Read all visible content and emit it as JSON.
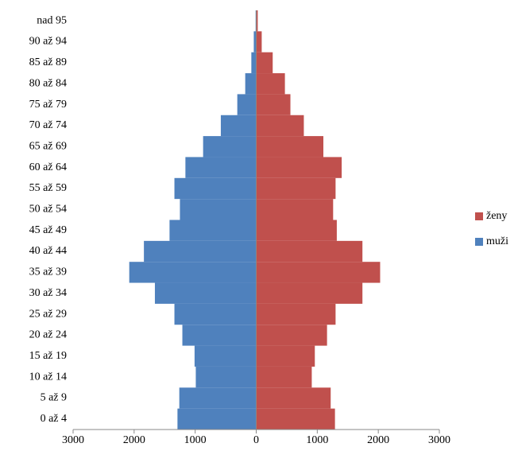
{
  "chart_data": {
    "type": "bar",
    "orientation": "horizontal",
    "categories": [
      "0 až 4",
      "5 až 9",
      "10 až 14",
      "15 až 19",
      "20 až 24",
      "25 až 29",
      "30 až 34",
      "35 až 39",
      "40 až 44",
      "45 až 49",
      "50 až 54",
      "55 až 59",
      "60 až 64",
      "65 až 69",
      "70 až 74",
      "75 až 79",
      "80 až 84",
      "85 až 89",
      "90 až 94",
      "nad 95"
    ],
    "series": [
      {
        "name": "ženy",
        "color": "#c0504d",
        "values": [
          1290,
          1220,
          910,
          960,
          1160,
          1300,
          1740,
          2030,
          1740,
          1320,
          1260,
          1300,
          1400,
          1100,
          780,
          560,
          470,
          270,
          90,
          25
        ]
      },
      {
        "name": "muži",
        "color": "#4f81bd",
        "values": [
          -1290,
          -1260,
          -990,
          -1010,
          -1210,
          -1340,
          -1660,
          -2080,
          -1840,
          -1420,
          -1250,
          -1340,
          -1160,
          -870,
          -580,
          -310,
          -180,
          -80,
          -40,
          -10
        ]
      }
    ],
    "xlim": [
      -3000,
      3000
    ],
    "xticks": [
      {
        "value": -3000,
        "label": "3000"
      },
      {
        "value": -2000,
        "label": "2000"
      },
      {
        "value": -1000,
        "label": "1000"
      },
      0,
      1000,
      2000,
      3000
    ],
    "legend": "right"
  }
}
